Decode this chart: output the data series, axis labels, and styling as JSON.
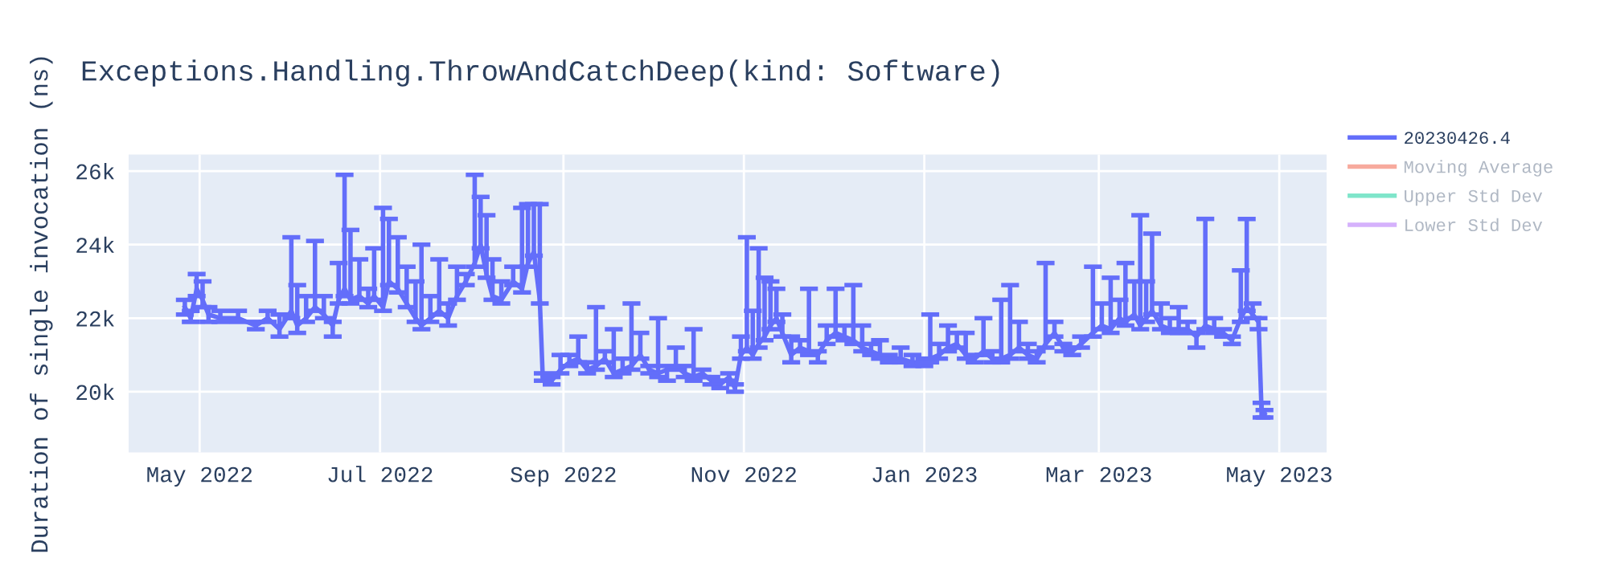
{
  "chart_data": {
    "type": "line",
    "title": "Exceptions.Handling.ThrowAndCatchDeep(kind: Software)",
    "ylabel": "Duration of single invocation (ns)",
    "xlim": [
      "2022-04-07",
      "2023-05-17"
    ],
    "ylim": [
      18350,
      26450
    ],
    "xticks": [
      {
        "value": "2022-05-01",
        "label": "May 2022"
      },
      {
        "value": "2022-07-01",
        "label": "Jul 2022"
      },
      {
        "value": "2022-09-01",
        "label": "Sep 2022"
      },
      {
        "value": "2022-11-01",
        "label": "Nov 2022"
      },
      {
        "value": "2023-01-01",
        "label": "Jan 2023"
      },
      {
        "value": "2023-03-01",
        "label": "Mar 2023"
      },
      {
        "value": "2023-05-01",
        "label": "May 2023"
      }
    ],
    "yticks": [
      {
        "value": 20000,
        "label": "20k"
      },
      {
        "value": 22000,
        "label": "22k"
      },
      {
        "value": 24000,
        "label": "24k"
      },
      {
        "value": 26000,
        "label": "26k"
      }
    ],
    "grid": true,
    "legend": "top right",
    "marker": "none",
    "line_style": "solid",
    "series": [
      {
        "name": "20230426.4",
        "color": "#636efa",
        "x": [
          "2022-04-26",
          "2022-04-28",
          "2022-04-30",
          "2022-05-02",
          "2022-05-04",
          "2022-05-08",
          "2022-05-14",
          "2022-05-20",
          "2022-05-24",
          "2022-05-28",
          "2022-06-01",
          "2022-06-03",
          "2022-06-06",
          "2022-06-09",
          "2022-06-12",
          "2022-06-15",
          "2022-06-17",
          "2022-06-19",
          "2022-06-21",
          "2022-06-24",
          "2022-06-27",
          "2022-06-29",
          "2022-07-02",
          "2022-07-04",
          "2022-07-07",
          "2022-07-10",
          "2022-07-13",
          "2022-07-15",
          "2022-07-18",
          "2022-07-21",
          "2022-07-24",
          "2022-07-27",
          "2022-07-30",
          "2022-08-02",
          "2022-08-04",
          "2022-08-06",
          "2022-08-08",
          "2022-08-11",
          "2022-08-15",
          "2022-08-18",
          "2022-08-20",
          "2022-08-22",
          "2022-08-24",
          "2022-08-25",
          "2022-08-28",
          "2022-08-31",
          "2022-09-03",
          "2022-09-06",
          "2022-09-09",
          "2022-09-12",
          "2022-09-15",
          "2022-09-18",
          "2022-09-21",
          "2022-09-24",
          "2022-09-27",
          "2022-09-30",
          "2022-10-03",
          "2022-10-06",
          "2022-10-09",
          "2022-10-12",
          "2022-10-15",
          "2022-10-18",
          "2022-10-21",
          "2022-10-24",
          "2022-10-27",
          "2022-10-29",
          "2022-10-31",
          "2022-11-02",
          "2022-11-04",
          "2022-11-06",
          "2022-11-08",
          "2022-11-10",
          "2022-11-12",
          "2022-11-14",
          "2022-11-17",
          "2022-11-20",
          "2022-11-23",
          "2022-11-26",
          "2022-11-29",
          "2022-12-02",
          "2022-12-05",
          "2022-12-08",
          "2022-12-11",
          "2022-12-14",
          "2022-12-17",
          "2022-12-20",
          "2022-12-24",
          "2022-12-28",
          "2023-01-01",
          "2023-01-03",
          "2023-01-06",
          "2023-01-09",
          "2023-01-12",
          "2023-01-15",
          "2023-01-18",
          "2023-01-21",
          "2023-01-24",
          "2023-01-27",
          "2023-01-30",
          "2023-02-02",
          "2023-02-05",
          "2023-02-08",
          "2023-02-11",
          "2023-02-14",
          "2023-02-17",
          "2023-02-20",
          "2023-02-23",
          "2023-02-27",
          "2023-03-02",
          "2023-03-05",
          "2023-03-08",
          "2023-03-10",
          "2023-03-13",
          "2023-03-15",
          "2023-03-17",
          "2023-03-19",
          "2023-03-22",
          "2023-03-25",
          "2023-03-28",
          "2023-03-31",
          "2023-04-03",
          "2023-04-06",
          "2023-04-09",
          "2023-04-12",
          "2023-04-15",
          "2023-04-18",
          "2023-04-20",
          "2023-04-22",
          "2023-04-24",
          "2023-04-25",
          "2023-04-26"
        ],
        "values": [
          22300,
          22000,
          22800,
          22500,
          22100,
          22000,
          22000,
          21800,
          22000,
          21700,
          22200,
          21800,
          22000,
          22300,
          22100,
          21800,
          22500,
          22800,
          22500,
          22600,
          22400,
          22600,
          22300,
          23000,
          22800,
          22400,
          22000,
          21800,
          22000,
          22200,
          22000,
          22600,
          23000,
          23500,
          24000,
          23200,
          22600,
          22500,
          23000,
          22800,
          23500,
          23800,
          22500,
          20400,
          20300,
          20600,
          20800,
          20900,
          20600,
          20700,
          20900,
          20500,
          20600,
          20700,
          21000,
          20600,
          20500,
          20600,
          20700,
          20500,
          20400,
          20500,
          20300,
          20200,
          20400,
          20100,
          21000,
          21200,
          21000,
          21300,
          21500,
          21800,
          22000,
          21600,
          21000,
          21200,
          21100,
          21000,
          21400,
          21600,
          21500,
          21400,
          21200,
          21100,
          21000,
          20900,
          20900,
          20800,
          20800,
          20900,
          21000,
          21200,
          21300,
          21000,
          20900,
          21100,
          20900,
          20900,
          21000,
          21200,
          21000,
          20900,
          21300,
          21600,
          21200,
          21100,
          21300,
          21600,
          21800,
          21700,
          22000,
          21900,
          22100,
          21800,
          22000,
          22200,
          21800,
          21700,
          21700,
          21700,
          21500,
          21800,
          21700,
          21600,
          21400,
          22000,
          22300,
          22100,
          21900,
          19500,
          19400
        ],
        "errors": [
          [
            22100,
            22500
          ],
          [
            21900,
            22200
          ],
          [
            22600,
            23200
          ],
          [
            22300,
            23000
          ],
          [
            21900,
            22300
          ],
          [
            21900,
            22200
          ],
          [
            21900,
            22200
          ],
          [
            21700,
            21900
          ],
          [
            21900,
            22200
          ],
          [
            21500,
            22100
          ],
          [
            22000,
            24200
          ],
          [
            21600,
            22900
          ],
          [
            21900,
            22600
          ],
          [
            22200,
            24100
          ],
          [
            22000,
            22600
          ],
          [
            21500,
            21900
          ],
          [
            22400,
            23500
          ],
          [
            22600,
            25900
          ],
          [
            22400,
            24400
          ],
          [
            22500,
            23600
          ],
          [
            22300,
            22800
          ],
          [
            22500,
            23900
          ],
          [
            22200,
            25000
          ],
          [
            22900,
            24700
          ],
          [
            22700,
            24200
          ],
          [
            22300,
            23400
          ],
          [
            21900,
            23000
          ],
          [
            21700,
            24000
          ],
          [
            21900,
            22600
          ],
          [
            22100,
            23600
          ],
          [
            21800,
            22400
          ],
          [
            22500,
            23400
          ],
          [
            22900,
            23200
          ],
          [
            23400,
            25900
          ],
          [
            23900,
            25300
          ],
          [
            23100,
            24800
          ],
          [
            22500,
            23600
          ],
          [
            22400,
            23000
          ],
          [
            22900,
            23400
          ],
          [
            22700,
            25000
          ],
          [
            23400,
            25100
          ],
          [
            23700,
            25100
          ],
          [
            22400,
            25100
          ],
          [
            20300,
            20500
          ],
          [
            20200,
            20400
          ],
          [
            20500,
            21000
          ],
          [
            20700,
            21000
          ],
          [
            20800,
            21500
          ],
          [
            20500,
            20800
          ],
          [
            20600,
            22300
          ],
          [
            20800,
            21100
          ],
          [
            20400,
            21700
          ],
          [
            20500,
            20900
          ],
          [
            20600,
            22400
          ],
          [
            20900,
            21600
          ],
          [
            20500,
            20700
          ],
          [
            20400,
            22000
          ],
          [
            20300,
            20700
          ],
          [
            20600,
            21200
          ],
          [
            20400,
            20700
          ],
          [
            20300,
            21700
          ],
          [
            20400,
            20600
          ],
          [
            20200,
            20400
          ],
          [
            20100,
            20300
          ],
          [
            20300,
            20500
          ],
          [
            20000,
            20200
          ],
          [
            20900,
            21500
          ],
          [
            21100,
            24200
          ],
          [
            20900,
            22200
          ],
          [
            21200,
            23900
          ],
          [
            21400,
            23100
          ],
          [
            21700,
            23000
          ],
          [
            21900,
            22800
          ],
          [
            21500,
            22100
          ],
          [
            20800,
            21500
          ],
          [
            21100,
            21400
          ],
          [
            21000,
            22800
          ],
          [
            20800,
            21100
          ],
          [
            21300,
            21800
          ],
          [
            21500,
            22800
          ],
          [
            21400,
            21800
          ],
          [
            21300,
            22900
          ],
          [
            21100,
            21800
          ],
          [
            21000,
            21300
          ],
          [
            20900,
            21400
          ],
          [
            20800,
            21000
          ],
          [
            20800,
            21200
          ],
          [
            20700,
            21000
          ],
          [
            20700,
            20900
          ],
          [
            20800,
            22100
          ],
          [
            20900,
            21300
          ],
          [
            21100,
            21800
          ],
          [
            21200,
            21600
          ],
          [
            20900,
            21600
          ],
          [
            20800,
            21000
          ],
          [
            21000,
            22000
          ],
          [
            20800,
            21100
          ],
          [
            20800,
            22500
          ],
          [
            20900,
            22900
          ],
          [
            21100,
            21900
          ],
          [
            20900,
            21300
          ],
          [
            20800,
            21100
          ],
          [
            21200,
            23500
          ],
          [
            21500,
            21900
          ],
          [
            21100,
            21300
          ],
          [
            21000,
            21200
          ],
          [
            21200,
            21500
          ],
          [
            21500,
            23400
          ],
          [
            21700,
            22400
          ],
          [
            21600,
            23100
          ],
          [
            21900,
            22500
          ],
          [
            21800,
            23500
          ],
          [
            22000,
            23000
          ],
          [
            21700,
            24800
          ],
          [
            21900,
            23000
          ],
          [
            22100,
            24300
          ],
          [
            21700,
            22400
          ],
          [
            21600,
            22000
          ],
          [
            21600,
            22300
          ],
          [
            21600,
            21900
          ],
          [
            21200,
            21600
          ],
          [
            21700,
            24700
          ],
          [
            21600,
            22000
          ],
          [
            21500,
            21700
          ],
          [
            21300,
            21500
          ],
          [
            21900,
            23300
          ],
          [
            22200,
            24700
          ],
          [
            22000,
            22400
          ],
          [
            21700,
            22000
          ],
          [
            19300,
            19700
          ],
          [
            19300,
            19500
          ]
        ]
      },
      {
        "name": "Moving Average",
        "color": "#ef553b"
      },
      {
        "name": "Upper Std Dev",
        "color": "#00cc96"
      },
      {
        "name": "Lower Std Dev",
        "color": "#ab63fa"
      }
    ]
  }
}
